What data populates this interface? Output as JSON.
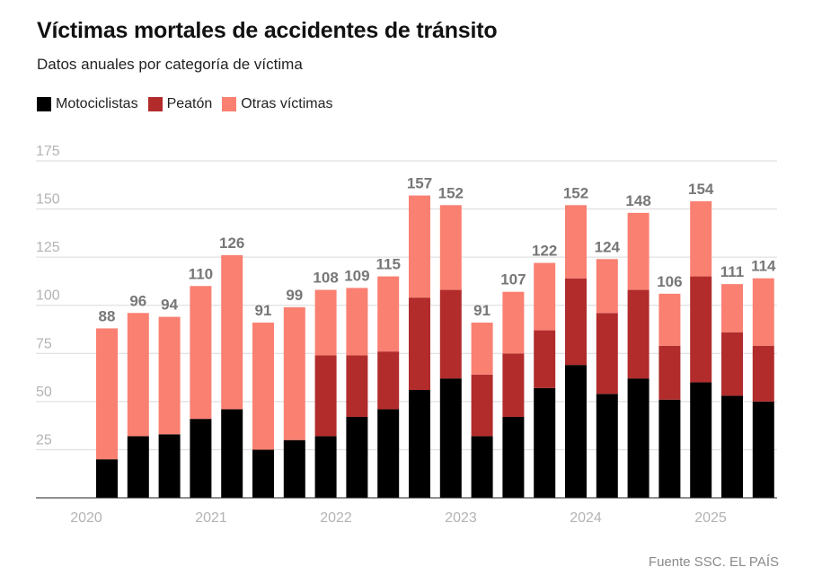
{
  "title": "Víctimas mortales de accidentes de tránsito",
  "subtitle": "Datos anuales por categoría de víctima",
  "source": "Fuente SSC. EL PAÍS",
  "colors": {
    "Motociclistas": "#000000",
    "Peatón": "#b22c2c",
    "Otras víctimas": "#fa8072"
  },
  "chart_data": {
    "type": "bar",
    "stacked": true,
    "title": "Víctimas mortales de accidentes de tránsito",
    "subtitle": "Datos anuales por categoría de víctima",
    "ylim": [
      0,
      175
    ],
    "y_ticks": [
      25,
      50,
      75,
      100,
      125,
      150,
      175
    ],
    "x_tick_labels": [
      "2020",
      "2021",
      "2022",
      "2023",
      "2024",
      "2025"
    ],
    "legend_position": "top-left",
    "grid": true,
    "categories": [
      "2020-1",
      "2020-2",
      "2020-3",
      "2021-1",
      "2021-2",
      "2021-3",
      "2021-4",
      "2022-1",
      "2022-2",
      "2022-3",
      "2022-4",
      "2023-1",
      "2023-2",
      "2023-3",
      "2023-4",
      "2024-1",
      "2024-2",
      "2024-3",
      "2024-4",
      "2025-1",
      "2025-2",
      "2025-3"
    ],
    "series": [
      {
        "name": "Motociclistas",
        "values": [
          20,
          32,
          33,
          41,
          46,
          25,
          30,
          32,
          42,
          46,
          56,
          62,
          32,
          42,
          57,
          69,
          54,
          62,
          51,
          60,
          53,
          50
        ]
      },
      {
        "name": "Peatón",
        "values": [
          0,
          0,
          0,
          0,
          0,
          0,
          0,
          42,
          32,
          30,
          48,
          46,
          32,
          33,
          30,
          45,
          42,
          46,
          28,
          55,
          33,
          29
        ]
      },
      {
        "name": "Otras víctimas",
        "values": [
          68,
          64,
          61,
          69,
          80,
          66,
          69,
          34,
          35,
          39,
          53,
          44,
          27,
          32,
          35,
          38,
          28,
          40,
          27,
          39,
          25,
          35
        ]
      }
    ],
    "totals": [
      88,
      96,
      94,
      110,
      126,
      91,
      99,
      108,
      109,
      115,
      157,
      152,
      91,
      107,
      122,
      152,
      124,
      148,
      106,
      154,
      111,
      114
    ]
  }
}
